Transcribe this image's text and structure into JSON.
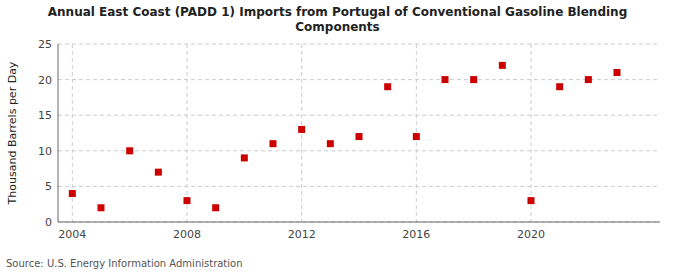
{
  "chart_data": {
    "type": "scatter",
    "title": "Annual East Coast (PADD 1) Imports from Portugal of Conventional Gasoline Blending\nComponents",
    "y_label": "Thousand Barrels per Day",
    "source": "Source: U.S. Energy Information Administration",
    "x": [
      2004,
      2005,
      2006,
      2007,
      2008,
      2009,
      2010,
      2011,
      2012,
      2013,
      2014,
      2015,
      2016,
      2017,
      2018,
      2019,
      2020,
      2021,
      2022,
      2023
    ],
    "values": [
      4.0,
      2.0,
      10.0,
      7.0,
      3.0,
      2.0,
      9.0,
      11.0,
      13.0,
      11.0,
      12.0,
      19.0,
      12.0,
      20.0,
      20.0,
      22.0,
      3.0,
      19.0,
      20.0,
      21.0
    ],
    "color": "#cc0000",
    "marker": "square",
    "xlim": [
      2003.5,
      2024.5
    ],
    "ylim": [
      0,
      25
    ],
    "xticks": [
      2004,
      2008,
      2012,
      2016,
      2020
    ],
    "yticks": [
      0,
      5,
      10,
      15,
      20,
      25
    ],
    "grid": true
  }
}
